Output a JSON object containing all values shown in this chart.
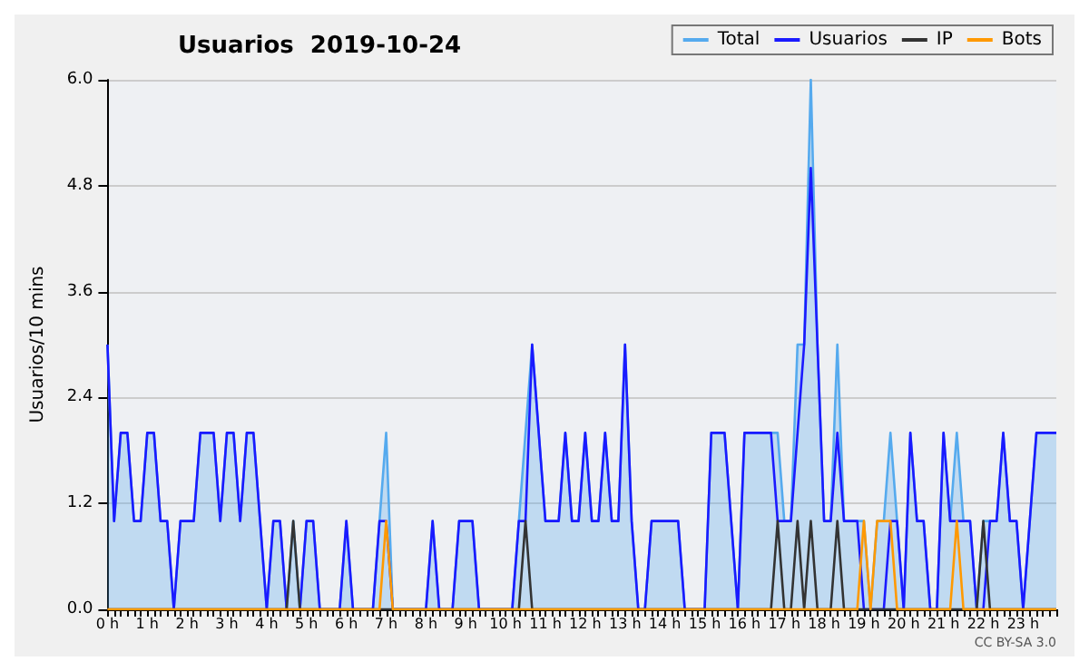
{
  "chart_data": {
    "type": "line",
    "title": "Usuarios  2019-10-24",
    "ylabel": "Usuarios/10 mins",
    "annotations": [
      "CC BY-SA 3.0"
    ],
    "categories": [
      "0 h",
      null,
      null,
      null,
      null,
      null,
      "1 h",
      null,
      null,
      null,
      null,
      null,
      "2 h",
      null,
      null,
      null,
      null,
      null,
      "3 h",
      null,
      null,
      null,
      null,
      null,
      "4 h",
      null,
      null,
      null,
      null,
      null,
      "5 h",
      null,
      null,
      null,
      null,
      null,
      "6 h",
      null,
      null,
      null,
      null,
      null,
      "7 h",
      null,
      null,
      null,
      null,
      null,
      "8 h",
      null,
      null,
      null,
      null,
      null,
      "9 h",
      null,
      null,
      null,
      null,
      null,
      "10 h",
      null,
      null,
      null,
      null,
      null,
      "11 h",
      null,
      null,
      null,
      null,
      null,
      "12 h",
      null,
      null,
      null,
      null,
      null,
      "13 h",
      null,
      null,
      null,
      null,
      null,
      "14 h",
      null,
      null,
      null,
      null,
      null,
      "15 h",
      null,
      null,
      null,
      null,
      null,
      "16 h",
      null,
      null,
      null,
      null,
      null,
      "17 h",
      null,
      null,
      null,
      null,
      null,
      "18 h",
      null,
      null,
      null,
      null,
      null,
      "19 h",
      null,
      null,
      null,
      null,
      null,
      "20 h",
      null,
      null,
      null,
      null,
      null,
      "21 h",
      null,
      null,
      null,
      null,
      null,
      "22 h",
      null,
      null,
      null,
      null,
      null,
      "23 h",
      null,
      null,
      null,
      null,
      null
    ],
    "series": [
      {
        "name": "Total",
        "type": "area",
        "color": "#55aaee",
        "values": [
          3,
          1,
          2,
          2,
          1,
          1,
          2,
          2,
          1,
          1,
          0,
          1,
          1,
          1,
          2,
          2,
          2,
          1,
          2,
          2,
          1,
          2,
          2,
          1,
          0,
          1,
          1,
          0,
          1,
          0,
          1,
          1,
          0,
          0,
          0,
          0,
          1,
          0,
          0,
          0,
          0,
          1,
          2,
          0,
          0,
          0,
          0,
          0,
          0,
          1,
          0,
          0,
          0,
          1,
          1,
          1,
          0,
          0,
          0,
          0,
          0,
          0,
          1,
          2,
          3,
          2,
          1,
          1,
          1,
          2,
          1,
          1,
          2,
          1,
          1,
          2,
          1,
          1,
          3,
          1,
          0,
          0,
          1,
          1,
          1,
          1,
          1,
          0,
          0,
          0,
          0,
          2,
          2,
          2,
          1,
          0,
          2,
          2,
          2,
          2,
          2,
          2,
          1,
          1,
          3,
          3,
          6,
          3,
          1,
          1,
          3,
          1,
          1,
          1,
          1,
          0,
          1,
          1,
          2,
          1,
          0,
          2,
          1,
          1,
          0,
          0,
          2,
          1,
          2,
          1,
          1,
          0,
          1,
          1,
          1,
          2,
          1,
          1,
          0,
          1,
          2,
          2,
          2,
          2
        ]
      },
      {
        "name": "Usuarios",
        "color": "#1a1aff",
        "values": [
          3,
          1,
          2,
          2,
          1,
          1,
          2,
          2,
          1,
          1,
          0,
          1,
          1,
          1,
          2,
          2,
          2,
          1,
          2,
          2,
          1,
          2,
          2,
          1,
          0,
          1,
          1,
          0,
          0,
          0,
          1,
          1,
          0,
          0,
          0,
          0,
          1,
          0,
          0,
          0,
          0,
          1,
          1,
          0,
          0,
          0,
          0,
          0,
          0,
          1,
          0,
          0,
          0,
          1,
          1,
          1,
          0,
          0,
          0,
          0,
          0,
          0,
          1,
          1,
          3,
          2,
          1,
          1,
          1,
          2,
          1,
          1,
          2,
          1,
          1,
          2,
          1,
          1,
          3,
          1,
          0,
          0,
          1,
          1,
          1,
          1,
          1,
          0,
          0,
          0,
          0,
          2,
          2,
          2,
          1,
          0,
          2,
          2,
          2,
          2,
          2,
          1,
          1,
          1,
          2,
          3,
          5,
          3,
          1,
          1,
          2,
          1,
          1,
          1,
          0,
          0,
          0,
          0,
          1,
          1,
          0,
          2,
          1,
          1,
          0,
          0,
          2,
          1,
          1,
          1,
          1,
          0,
          0,
          1,
          1,
          2,
          1,
          1,
          0,
          1,
          2,
          2,
          2,
          2
        ]
      },
      {
        "name": "IP",
        "color": "#333333",
        "values": [
          0,
          0,
          0,
          0,
          0,
          0,
          0,
          0,
          0,
          0,
          0,
          0,
          0,
          0,
          0,
          0,
          0,
          0,
          0,
          0,
          0,
          0,
          0,
          0,
          0,
          0,
          0,
          0,
          1,
          0,
          0,
          0,
          0,
          0,
          0,
          0,
          0,
          0,
          0,
          0,
          0,
          0,
          0,
          0,
          0,
          0,
          0,
          0,
          0,
          0,
          0,
          0,
          0,
          0,
          0,
          0,
          0,
          0,
          0,
          0,
          0,
          0,
          0,
          1,
          0,
          0,
          0,
          0,
          0,
          0,
          0,
          0,
          0,
          0,
          0,
          0,
          0,
          0,
          0,
          0,
          0,
          0,
          0,
          0,
          0,
          0,
          0,
          0,
          0,
          0,
          0,
          0,
          0,
          0,
          0,
          0,
          0,
          0,
          0,
          0,
          0,
          1,
          0,
          0,
          1,
          0,
          1,
          0,
          0,
          0,
          1,
          0,
          0,
          0,
          0,
          0,
          0,
          0,
          0,
          0,
          0,
          0,
          0,
          0,
          0,
          0,
          0,
          0,
          0,
          0,
          0,
          0,
          1,
          0,
          0,
          0,
          0,
          0,
          0,
          0,
          0,
          0,
          0,
          0
        ]
      },
      {
        "name": "Bots",
        "color": "#ff9900",
        "values": [
          0,
          0,
          0,
          0,
          0,
          0,
          0,
          0,
          0,
          0,
          0,
          0,
          0,
          0,
          0,
          0,
          0,
          0,
          0,
          0,
          0,
          0,
          0,
          0,
          0,
          0,
          0,
          0,
          0,
          0,
          0,
          0,
          0,
          0,
          0,
          0,
          0,
          0,
          0,
          0,
          0,
          0,
          1,
          0,
          0,
          0,
          0,
          0,
          0,
          0,
          0,
          0,
          0,
          0,
          0,
          0,
          0,
          0,
          0,
          0,
          0,
          0,
          0,
          0,
          0,
          0,
          0,
          0,
          0,
          0,
          0,
          0,
          0,
          0,
          0,
          0,
          0,
          0,
          0,
          0,
          0,
          0,
          0,
          0,
          0,
          0,
          0,
          0,
          0,
          0,
          0,
          0,
          0,
          0,
          0,
          0,
          0,
          0,
          0,
          0,
          0,
          0,
          0,
          0,
          0,
          0,
          0,
          0,
          0,
          0,
          0,
          0,
          0,
          0,
          1,
          0,
          1,
          1,
          1,
          0,
          0,
          0,
          0,
          0,
          0,
          0,
          0,
          0,
          1,
          0,
          0,
          0,
          0,
          0,
          0,
          0,
          0,
          0,
          0,
          0,
          0,
          0,
          0,
          0
        ]
      }
    ],
    "ylim": [
      0,
      6
    ],
    "yticks": [
      {
        "value": 0,
        "label": "0.0"
      },
      1.2,
      2.4,
      3.6,
      4.8,
      {
        "value": 6,
        "label": "6.0"
      }
    ],
    "grid": "y",
    "legend": "top right",
    "marker": "none",
    "line_style": "solid"
  }
}
